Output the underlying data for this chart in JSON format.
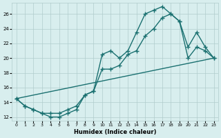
{
  "xlabel": "Humidex (Indice chaleur)",
  "bg_color": "#d8eeee",
  "line_color": "#1a7070",
  "grid_color": "#b0cccc",
  "xlim": [
    -0.5,
    23.5
  ],
  "ylim": [
    11.5,
    27.5
  ],
  "xticks": [
    0,
    1,
    2,
    3,
    4,
    5,
    6,
    7,
    8,
    9,
    10,
    11,
    12,
    13,
    14,
    15,
    16,
    17,
    18,
    19,
    20,
    21,
    22,
    23
  ],
  "yticks": [
    12,
    14,
    16,
    18,
    20,
    22,
    24,
    26
  ],
  "line1_x": [
    0,
    1,
    2,
    3,
    4,
    5,
    6,
    7,
    8,
    9,
    10,
    11,
    12,
    13,
    14,
    15,
    16,
    17,
    18,
    19,
    20,
    21,
    22,
    23
  ],
  "line1_y": [
    14.5,
    13.5,
    13.0,
    12.5,
    12.0,
    12.0,
    12.5,
    13.0,
    15.0,
    15.5,
    20.5,
    21.0,
    20.0,
    21.0,
    23.5,
    26.0,
    26.5,
    27.0,
    26.0,
    25.0,
    21.5,
    23.5,
    21.5,
    20.0
  ],
  "line2_x": [
    0,
    1,
    2,
    3,
    4,
    5,
    6,
    7,
    8,
    9,
    10,
    11,
    12,
    13,
    14,
    15,
    16,
    17,
    18,
    19,
    20,
    21,
    22,
    23
  ],
  "line2_y": [
    14.5,
    13.5,
    13.0,
    12.5,
    12.5,
    12.5,
    13.0,
    13.5,
    15.0,
    15.5,
    18.5,
    18.5,
    19.0,
    20.5,
    21.0,
    23.0,
    24.0,
    25.5,
    26.0,
    25.0,
    20.0,
    21.5,
    21.0,
    20.0
  ],
  "line3_x": [
    0,
    23
  ],
  "line3_y": [
    14.5,
    20.0
  ],
  "markersize": 3,
  "linewidth": 1.0
}
